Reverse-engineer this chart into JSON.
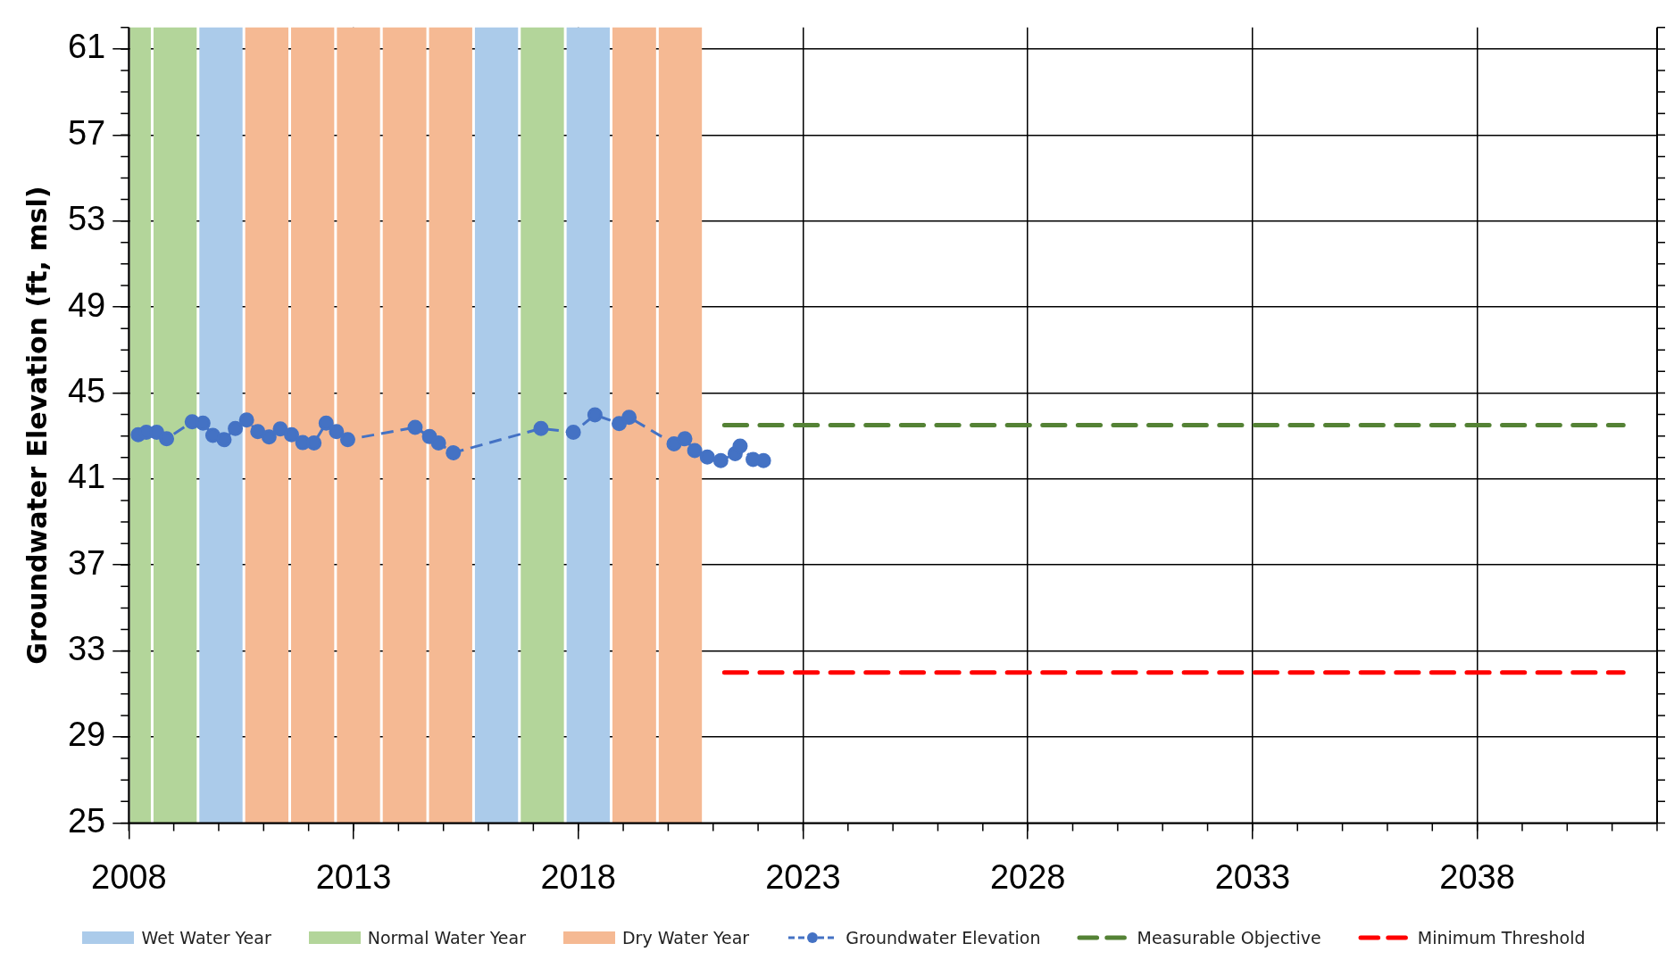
{
  "chart_data": {
    "type": "line",
    "ylabel": "Groundwater Elevation (ft, msl)",
    "xlim": [
      2008,
      2042
    ],
    "xticks": [
      2008,
      2013,
      2018,
      2023,
      2028,
      2033,
      2038
    ],
    "ylim": [
      25,
      62
    ],
    "yticks": [
      25,
      29,
      33,
      37,
      41,
      45,
      49,
      53,
      57,
      61
    ],
    "grid": true,
    "legend": "bottom",
    "bands": [
      {
        "axis": "x",
        "from": 2009.54,
        "to": 2010.56,
        "label": "Wet Water Year",
        "color": "#abcbea"
      },
      {
        "axis": "x",
        "from": 2008,
        "to": 2008.52,
        "label": "Normal Water Year",
        "color": "#b3d59a"
      },
      {
        "axis": "x",
        "from": 2010.56,
        "to": 2011.58,
        "label": "Dry Water Year",
        "color": "#f5b993"
      },
      {
        "axis": "x",
        "from": 2008.52,
        "to": 2009.54,
        "color": "#b3d59a"
      },
      {
        "axis": "x",
        "from": 2011.58,
        "to": 2012.6,
        "color": "#f5b993"
      },
      {
        "axis": "x",
        "from": 2012.6,
        "to": 2013.62,
        "color": "#f5b993"
      },
      {
        "axis": "x",
        "from": 2013.62,
        "to": 2014.65,
        "color": "#f5b993"
      },
      {
        "axis": "x",
        "from": 2014.65,
        "to": 2015.67,
        "color": "#f5b993"
      },
      {
        "axis": "x",
        "from": 2015.67,
        "to": 2016.69,
        "color": "#abcbea"
      },
      {
        "axis": "x",
        "from": 2016.69,
        "to": 2017.71,
        "color": "#b3d59a"
      },
      {
        "axis": "x",
        "from": 2017.71,
        "to": 2018.73,
        "color": "#abcbea"
      },
      {
        "axis": "x",
        "from": 2018.73,
        "to": 2019.76,
        "color": "#f5b993"
      },
      {
        "axis": "x",
        "from": 2019.76,
        "to": 2020.78,
        "color": "#f5b993"
      }
    ],
    "series": [
      {
        "name": "Groundwater Elevation",
        "color": "#4472c4",
        "marker": "circle",
        "line_style": "dashed",
        "x": [
          2008.21,
          2008.39,
          2008.62,
          2008.84,
          2009.41,
          2009.65,
          2009.87,
          2010.12,
          2010.37,
          2010.62,
          2010.87,
          2011.12,
          2011.37,
          2011.62,
          2011.87,
          2012.12,
          2012.39,
          2012.62,
          2012.87,
          2014.37,
          2014.69,
          2014.89,
          2015.22,
          2017.17,
          2017.89,
          2018.37,
          2018.91,
          2019.13,
          2020.13,
          2020.37,
          2020.59,
          2020.87,
          2021.17,
          2021.49,
          2021.6,
          2021.89,
          2022.12
        ],
        "values": [
          43.06,
          43.17,
          43.17,
          42.87,
          43.66,
          43.6,
          43.03,
          42.83,
          43.35,
          43.74,
          43.2,
          42.95,
          43.33,
          43.06,
          42.69,
          42.67,
          43.6,
          43.2,
          42.83,
          43.4,
          42.97,
          42.67,
          42.22,
          43.35,
          43.17,
          43.98,
          43.58,
          43.87,
          42.63,
          42.87,
          42.32,
          42.02,
          41.85,
          42.18,
          42.53,
          41.91,
          41.85
        ]
      },
      {
        "name": "Measurable Objective",
        "color": "#548235",
        "marker": "none",
        "line_style": "dashed",
        "x": [
          2021.25,
          2041.25
        ],
        "values": [
          43.5,
          43.5
        ]
      },
      {
        "name": "Minimum Threshold",
        "color": "#ff0000",
        "marker": "none",
        "line_style": "dashed",
        "x": [
          2021.25,
          2041.25
        ],
        "values": [
          32,
          32
        ]
      }
    ]
  }
}
